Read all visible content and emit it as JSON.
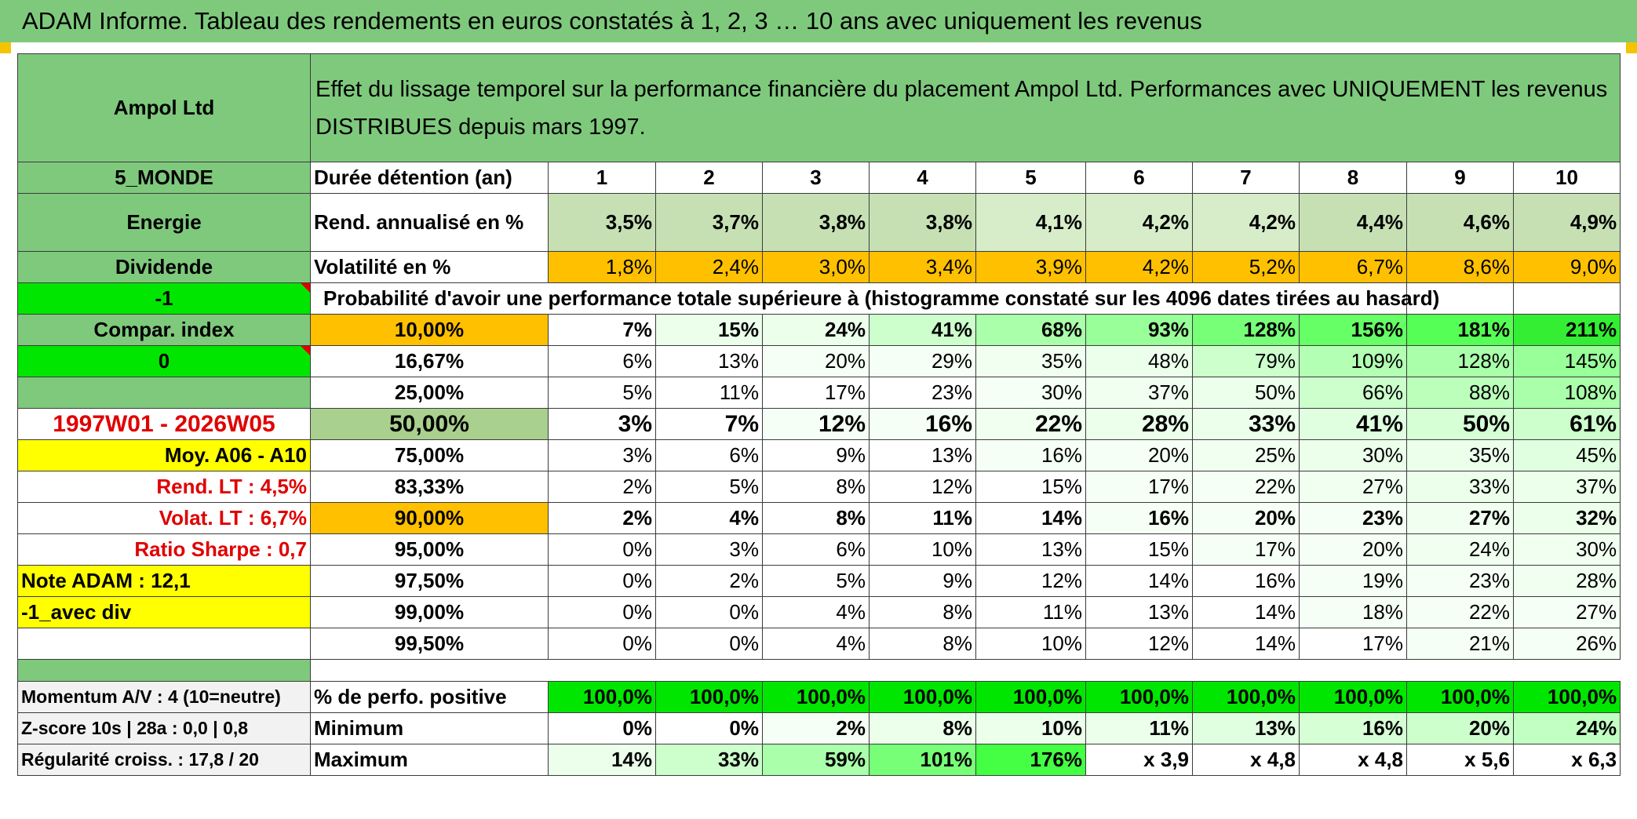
{
  "banner": "ADAM Informe. Tableau des rendements en euros constatés à 1, 2, 3 … 10 ans avec uniquement les revenus",
  "company": "Ampol Ltd",
  "description": "Effet du lissage temporel sur la performance financière du placement Ampol Ltd. Performances avec UNIQUEMENT les revenus DISTRIBUES depuis mars 1997.",
  "side": {
    "zone": "5_MONDE",
    "sector": "Energie",
    "type": "Dividende",
    "flag1": "-1",
    "compar": "Compar. index",
    "flag2": "0",
    "period": "1997W01 - 2026W05",
    "moy": "Moy. A06 - A10",
    "rend_lt": "Rend. LT :   4,5%",
    "volat_lt": "Volat. LT :   6,7%",
    "sharpe": "Ratio Sharpe :   0,7",
    "note": "Note ADAM : 12,1",
    "variant": "-1_avec div"
  },
  "header": {
    "duration_label": "Durée détention (an)",
    "years": [
      "1",
      "2",
      "3",
      "4",
      "5",
      "6",
      "7",
      "8",
      "9",
      "10"
    ]
  },
  "rend": {
    "label": "Rend. annualisé en %",
    "values": [
      "3,5%",
      "3,7%",
      "3,8%",
      "3,8%",
      "4,1%",
      "4,2%",
      "4,2%",
      "4,4%",
      "4,6%",
      "4,9%"
    ]
  },
  "volat": {
    "label": "Volatilité en %",
    "values": [
      "1,8%",
      "2,4%",
      "3,0%",
      "3,4%",
      "3,9%",
      "4,2%",
      "5,2%",
      "6,7%",
      "8,6%",
      "9,0%"
    ]
  },
  "prob_title": "Probabilité d'avoir une performance totale supérieure à (histogramme constaté sur les 4096 dates tirées au hasard)",
  "quantiles": [
    {
      "pct": "10,00%",
      "values": [
        "7%",
        "15%",
        "24%",
        "41%",
        "68%",
        "93%",
        "128%",
        "156%",
        "181%",
        "211%"
      ]
    },
    {
      "pct": "16,67%",
      "values": [
        "6%",
        "13%",
        "20%",
        "29%",
        "35%",
        "48%",
        "79%",
        "109%",
        "128%",
        "145%"
      ]
    },
    {
      "pct": "25,00%",
      "values": [
        "5%",
        "11%",
        "17%",
        "23%",
        "30%",
        "37%",
        "50%",
        "66%",
        "88%",
        "108%"
      ]
    },
    {
      "pct": "50,00%",
      "values": [
        "3%",
        "7%",
        "12%",
        "16%",
        "22%",
        "28%",
        "33%",
        "41%",
        "50%",
        "61%"
      ]
    },
    {
      "pct": "75,00%",
      "values": [
        "3%",
        "6%",
        "9%",
        "13%",
        "16%",
        "20%",
        "25%",
        "30%",
        "35%",
        "45%"
      ]
    },
    {
      "pct": "83,33%",
      "values": [
        "2%",
        "5%",
        "8%",
        "12%",
        "15%",
        "17%",
        "22%",
        "27%",
        "33%",
        "37%"
      ]
    },
    {
      "pct": "90,00%",
      "values": [
        "2%",
        "4%",
        "8%",
        "11%",
        "14%",
        "16%",
        "20%",
        "23%",
        "27%",
        "32%"
      ]
    },
    {
      "pct": "95,00%",
      "values": [
        "0%",
        "3%",
        "6%",
        "10%",
        "13%",
        "15%",
        "17%",
        "20%",
        "24%",
        "30%"
      ]
    },
    {
      "pct": "97,50%",
      "values": [
        "0%",
        "2%",
        "5%",
        "9%",
        "12%",
        "14%",
        "16%",
        "19%",
        "23%",
        "28%"
      ]
    },
    {
      "pct": "99,00%",
      "values": [
        "0%",
        "0%",
        "4%",
        "8%",
        "11%",
        "13%",
        "14%",
        "18%",
        "22%",
        "27%"
      ]
    },
    {
      "pct": "99,50%",
      "values": [
        "0%",
        "0%",
        "4%",
        "8%",
        "10%",
        "12%",
        "14%",
        "17%",
        "21%",
        "26%"
      ]
    }
  ],
  "bottom": {
    "momentum": "Momentum A/V : 4 (10=neutre)",
    "zscore": "Z-score 10s | 28a : 0,0 | 0,8",
    "regul": "Régularité croiss. : 17,8 / 20",
    "positive": {
      "label": "% de perfo. positive",
      "values": [
        "100,0%",
        "100,0%",
        "100,0%",
        "100,0%",
        "100,0%",
        "100,0%",
        "100,0%",
        "100,0%",
        "100,0%",
        "100,0%"
      ]
    },
    "minimum": {
      "label": "Minimum",
      "values": [
        "0%",
        "0%",
        "2%",
        "8%",
        "10%",
        "11%",
        "13%",
        "16%",
        "20%",
        "24%"
      ]
    },
    "maximum": {
      "label": "Maximum",
      "values": [
        "14%",
        "33%",
        "59%",
        "101%",
        "176%",
        "x 3,9",
        "x 4,8",
        "x 4,8",
        "x 5,6",
        "x 6,3"
      ]
    }
  },
  "colors": {
    "header_green": "#7fc97d",
    "bright_green": "#00e600",
    "orange": "#ffc000",
    "yellow": "#ffff00",
    "red_text": "#e00000",
    "rend_shades": [
      "#c6e0b4",
      "#c6e0b4",
      "#c6e0b4",
      "#c6e0b4",
      "#d7ecc9",
      "#d7ecc9",
      "#d7ecc9",
      "#c6e0b4",
      "#c6e0b4",
      "#c6e0b4"
    ],
    "quantile_shades": [
      [
        "#ffffff",
        "#ebffeb",
        "#ebffeb",
        "#ccffcc",
        "#aaffaa",
        "#99ff99",
        "#77ff77",
        "#66ff66",
        "#55ff55",
        "#33ee33"
      ],
      [
        "#ffffff",
        "#ffffff",
        "#f5fff5",
        "#f5fff5",
        "#f0fff0",
        "#ebffeb",
        "#ccffcc",
        "#b3ffb3",
        "#aaffaa",
        "#99ff99"
      ],
      [
        "#ffffff",
        "#ffffff",
        "#ffffff",
        "#ffffff",
        "#f5fff5",
        "#f0fff0",
        "#ebffeb",
        "#ccffcc",
        "#bbffbb",
        "#aaffaa"
      ],
      [
        "#ffffff",
        "#ffffff",
        "#f5fff5",
        "#f5fff5",
        "#f0fff0",
        "#ebffeb",
        "#ebffeb",
        "#e0ffe0",
        "#d6ffd6",
        "#ccffcc"
      ],
      [
        "#ffffff",
        "#ffffff",
        "#ffffff",
        "#ffffff",
        "#f5fff5",
        "#f5fff5",
        "#f0fff0",
        "#ebffeb",
        "#ebffeb",
        "#e0ffe0"
      ],
      [
        "#ffffff",
        "#ffffff",
        "#ffffff",
        "#ffffff",
        "#ffffff",
        "#f5fff5",
        "#f5fff5",
        "#f0fff0",
        "#ebffeb",
        "#ebffeb"
      ],
      [
        "#ffffff",
        "#ffffff",
        "#ffffff",
        "#ffffff",
        "#ffffff",
        "#f5fff5",
        "#f5fff5",
        "#f5fff5",
        "#f0fff0",
        "#ebffeb"
      ],
      [
        "#ffffff",
        "#ffffff",
        "#ffffff",
        "#ffffff",
        "#ffffff",
        "#ffffff",
        "#f5fff5",
        "#f5fff5",
        "#f0fff0",
        "#f0fff0"
      ],
      [
        "#ffffff",
        "#ffffff",
        "#ffffff",
        "#ffffff",
        "#ffffff",
        "#ffffff",
        "#ffffff",
        "#f5fff5",
        "#f5fff5",
        "#f0fff0"
      ],
      [
        "#ffffff",
        "#ffffff",
        "#ffffff",
        "#ffffff",
        "#ffffff",
        "#ffffff",
        "#ffffff",
        "#f5fff5",
        "#f5fff5",
        "#f5fff5"
      ],
      [
        "#ffffff",
        "#ffffff",
        "#ffffff",
        "#ffffff",
        "#ffffff",
        "#ffffff",
        "#ffffff",
        "#ffffff",
        "#f5fff5",
        "#f5fff5"
      ]
    ],
    "min_shades": [
      "#ffffff",
      "#ffffff",
      "#f5fff5",
      "#ebffeb",
      "#ebffeb",
      "#ebffeb",
      "#e0ffe0",
      "#d6ffd6",
      "#ccffcc",
      "#c2ffc2"
    ],
    "max_shades": [
      "#ebffeb",
      "#ccffcc",
      "#aaffaa",
      "#77ff77",
      "#44ff44",
      "#ffffff",
      "#ffffff",
      "#ffffff",
      "#ffffff",
      "#ffffff"
    ]
  }
}
